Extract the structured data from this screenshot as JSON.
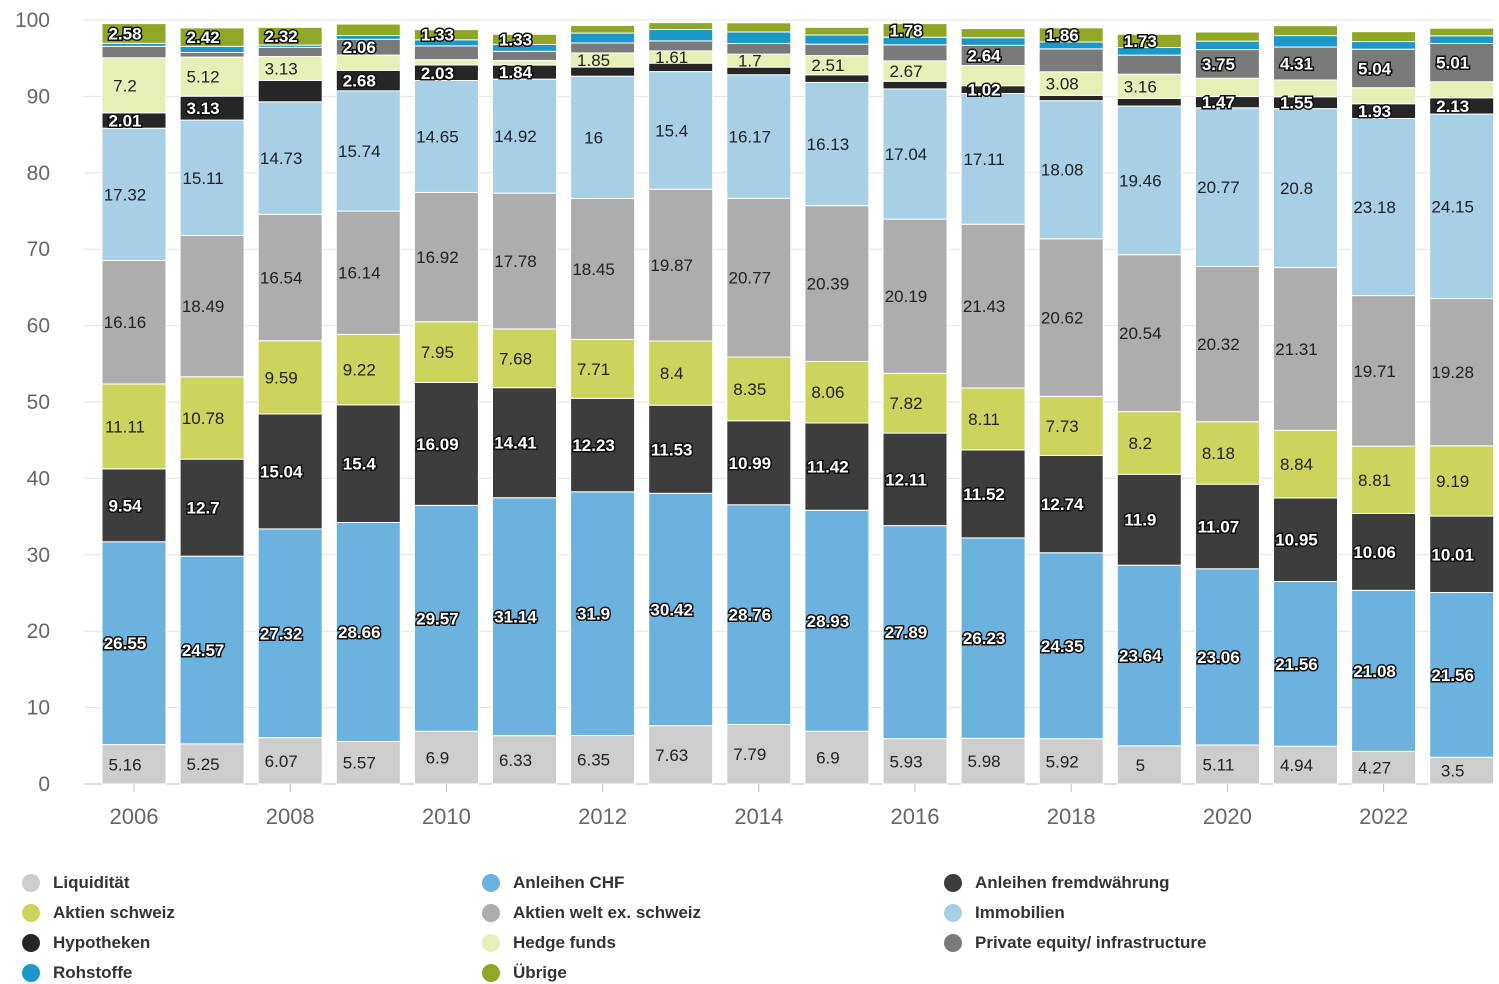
{
  "chart_data": {
    "type": "bar",
    "stacked": true,
    "title": "",
    "xlabel": "",
    "ylabel": "",
    "ylim": [
      0,
      100
    ],
    "yticks": [
      0,
      10,
      20,
      30,
      40,
      50,
      60,
      70,
      80,
      90,
      100
    ],
    "x_tick_labels": [
      "2006",
      "2008",
      "2010",
      "2012",
      "2014",
      "2016",
      "2018",
      "2020",
      "2022"
    ],
    "grid": true,
    "legend_position": "bottom",
    "categories": [
      "2006",
      "2007",
      "2008",
      "2009",
      "2010",
      "2011",
      "2012",
      "2013",
      "2014",
      "2015",
      "2016",
      "2017",
      "2018",
      "2019",
      "2020",
      "2021",
      "2022",
      "2023"
    ],
    "series": [
      {
        "name": "Liquidität",
        "color": "#cdcdcd",
        "label_style": "plain",
        "values": [
          5.16,
          5.25,
          6.07,
          5.57,
          6.9,
          6.33,
          6.35,
          7.63,
          7.79,
          6.9,
          5.93,
          5.98,
          5.92,
          5,
          5.11,
          4.94,
          4.27,
          3.5
        ]
      },
      {
        "name": "Anleihen CHF",
        "color": "#6bb2de",
        "label_style": "outline",
        "values": [
          26.55,
          24.57,
          27.32,
          28.66,
          29.57,
          31.14,
          31.9,
          30.42,
          28.76,
          28.93,
          27.89,
          26.23,
          24.35,
          23.64,
          23.06,
          21.56,
          21.08,
          21.56
        ]
      },
      {
        "name": "Anleihen fremdwährung",
        "color": "#3d3d3d",
        "label_style": "outline",
        "values": [
          9.54,
          12.7,
          15.04,
          15.4,
          16.09,
          14.41,
          12.23,
          11.53,
          10.99,
          11.42,
          12.11,
          11.52,
          12.74,
          11.9,
          11.07,
          10.95,
          10.06,
          10.01
        ]
      },
      {
        "name": "Aktien schweiz",
        "color": "#cdd45e",
        "label_style": "plain",
        "values": [
          11.11,
          10.78,
          9.59,
          9.22,
          7.95,
          7.68,
          7.71,
          8.4,
          8.35,
          8.06,
          7.82,
          8.11,
          7.73,
          8.2,
          8.18,
          8.84,
          8.81,
          9.19
        ]
      },
      {
        "name": "Aktien welt ex. schweiz",
        "color": "#adadad",
        "label_style": "plain",
        "values": [
          16.16,
          18.49,
          16.54,
          16.14,
          16.92,
          17.78,
          18.45,
          19.87,
          20.77,
          20.39,
          20.19,
          21.43,
          20.62,
          20.54,
          20.32,
          21.31,
          19.71,
          19.28
        ]
      },
      {
        "name": "Immobilien",
        "color": "#a7cfe6",
        "label_style": "plain",
        "values": [
          17.32,
          15.11,
          14.73,
          15.74,
          14.65,
          14.92,
          16,
          15.4,
          16.17,
          16.13,
          17.04,
          17.11,
          18.08,
          19.46,
          20.77,
          20.8,
          23.18,
          24.15
        ]
      },
      {
        "name": "Hypotheken",
        "color": "#262626",
        "label_style": "outline",
        "values": [
          2.01,
          3.13,
          2.8,
          2.68,
          2.03,
          1.84,
          1.2,
          1.1,
          1.0,
          1.0,
          1.0,
          1.02,
          0.7,
          1.0,
          1.47,
          1.55,
          1.93,
          2.13
        ]
      },
      {
        "name": "Hedge funds",
        "color": "#e5efb6",
        "label_style": "plain",
        "values": [
          7.2,
          5.12,
          3.13,
          2.0,
          0.7,
          0.6,
          1.85,
          1.61,
          1.7,
          2.51,
          2.67,
          2.64,
          3.08,
          3.16,
          2.4,
          2.2,
          2.1,
          2.1
        ]
      },
      {
        "name": "Private equity/ infrastructure",
        "color": "#7a7a7a",
        "label_style": "outline",
        "values": [
          1.5,
          0.6,
          1.2,
          2.06,
          1.8,
          1.2,
          1.3,
          1.3,
          1.4,
          1.5,
          2.1,
          2.64,
          3.0,
          2.5,
          3.75,
          4.31,
          5.04,
          5.01
        ]
      },
      {
        "name": "Rohstoffe",
        "color": "#1b97c9",
        "label_style": "outline",
        "values": [
          0.4,
          0.8,
          0.3,
          0.5,
          0.8,
          0.9,
          1.3,
          1.5,
          1.5,
          1.2,
          1.0,
          1.0,
          0.9,
          1.0,
          1.1,
          1.5,
          1.0,
          1.0
        ]
      },
      {
        "name": "Übrige",
        "color": "#8ea826",
        "label_style": "outline",
        "values": [
          2.58,
          2.42,
          2.32,
          1.5,
          1.33,
          1.33,
          1.0,
          0.9,
          1.2,
          1.0,
          1.78,
          1.2,
          1.86,
          1.73,
          1.2,
          1.3,
          1.3,
          1.0
        ]
      }
    ],
    "shown_labels": [
      [
        "5.16",
        "26.55",
        "9.54",
        "11.11",
        "16.16",
        "17.32",
        "2.01",
        "7.2",
        "",
        "",
        "2.58"
      ],
      [
        "5.25",
        "24.57",
        "12.7",
        "10.78",
        "18.49",
        "15.11",
        "3.13",
        "5.12",
        "",
        "",
        "2.42"
      ],
      [
        "6.07",
        "27.32",
        "15.04",
        "9.59",
        "16.54",
        "14.73",
        "",
        "3.13",
        "",
        "",
        "2.32"
      ],
      [
        "5.57",
        "28.66",
        "15.4",
        "9.22",
        "16.14",
        "15.74",
        "2.68",
        "",
        "2.06",
        "",
        ""
      ],
      [
        "6.9",
        "29.57",
        "16.09",
        "7.95",
        "16.92",
        "14.65",
        "2.03",
        "",
        "",
        "",
        "1.33"
      ],
      [
        "6.33",
        "31.14",
        "14.41",
        "7.68",
        "17.78",
        "14.92",
        "1.84",
        "",
        "",
        "",
        "1.33"
      ],
      [
        "6.35",
        "31.9",
        "12.23",
        "7.71",
        "18.45",
        "16",
        "",
        "1.85",
        "",
        "",
        ""
      ],
      [
        "7.63",
        "30.42",
        "11.53",
        "8.4",
        "19.87",
        "15.4",
        "",
        "1.61",
        "",
        "",
        ""
      ],
      [
        "7.79",
        "28.76",
        "10.99",
        "8.35",
        "20.77",
        "16.17",
        "",
        "1.7",
        "",
        "",
        ""
      ],
      [
        "6.9",
        "28.93",
        "11.42",
        "8.06",
        "20.39",
        "16.13",
        "",
        "2.51",
        "",
        "",
        ""
      ],
      [
        "5.93",
        "27.89",
        "12.11",
        "7.82",
        "20.19",
        "17.04",
        "",
        "2.67",
        "",
        "",
        "1.78"
      ],
      [
        "5.98",
        "26.23",
        "11.52",
        "8.11",
        "21.43",
        "17.11",
        "1.02",
        "",
        "2.64",
        "",
        ""
      ],
      [
        "5.92",
        "24.35",
        "12.74",
        "7.73",
        "20.62",
        "18.08",
        "",
        "3.08",
        "",
        "",
        "1.86"
      ],
      [
        "5",
        "23.64",
        "11.9",
        "8.2",
        "20.54",
        "19.46",
        "",
        "3.16",
        "",
        "",
        "1.73"
      ],
      [
        "5.11",
        "23.06",
        "11.07",
        "8.18",
        "20.32",
        "20.77",
        "1.47",
        "",
        "3.75",
        "",
        ""
      ],
      [
        "4.94",
        "21.56",
        "10.95",
        "8.84",
        "21.31",
        "20.8",
        "1.55",
        "",
        "4.31",
        "",
        ""
      ],
      [
        "4.27",
        "21.08",
        "10.06",
        "8.81",
        "19.71",
        "23.18",
        "1.93",
        "",
        "5.04",
        "",
        ""
      ],
      [
        "3.5",
        "21.56",
        "10.01",
        "9.19",
        "19.28",
        "24.15",
        "2.13",
        "",
        "5.01",
        "",
        ""
      ]
    ]
  },
  "legend": [
    {
      "label": "Liquidität",
      "color": "#cdcdcd"
    },
    {
      "label": "Anleihen CHF",
      "color": "#6bb2de"
    },
    {
      "label": "Anleihen fremdwährung",
      "color": "#3d3d3d"
    },
    {
      "label": "Aktien schweiz",
      "color": "#cdd45e"
    },
    {
      "label": "Aktien welt ex. schweiz",
      "color": "#adadad"
    },
    {
      "label": "Immobilien",
      "color": "#a7cfe6"
    },
    {
      "label": "Hypotheken",
      "color": "#262626"
    },
    {
      "label": "Hedge funds",
      "color": "#e5efb6"
    },
    {
      "label": "Private equity/ infrastructure",
      "color": "#7a7a7a"
    },
    {
      "label": "Rohstoffe",
      "color": "#1b97c9"
    },
    {
      "label": "Übrige",
      "color": "#8ea826"
    }
  ]
}
